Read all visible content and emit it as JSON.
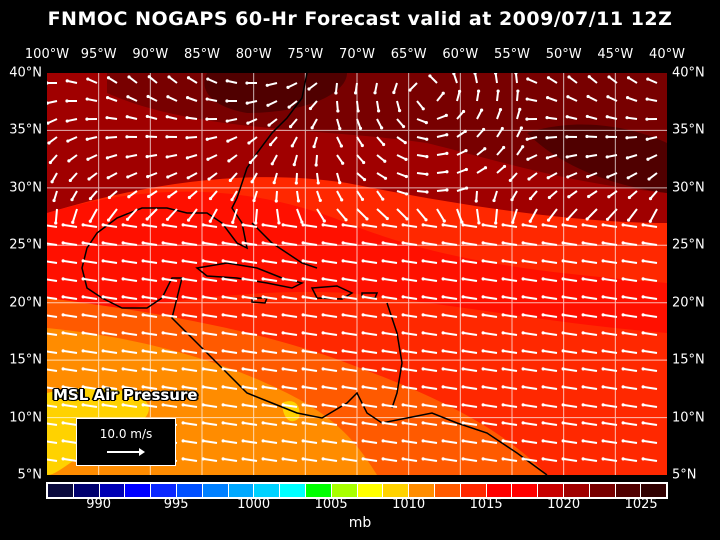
{
  "title": "FNMOC NOGAPS 60-Hr Forecast valid at 2009/07/11 12Z",
  "lon_labels": [
    "100°W",
    "95°W",
    "90°W",
    "85°W",
    "80°W",
    "75°W",
    "70°W",
    "65°W",
    "60°W",
    "55°W",
    "50°W",
    "45°W",
    "40°W"
  ],
  "lat_labels": [
    "40°N",
    "35°N",
    "30°N",
    "25°N",
    "20°N",
    "15°N",
    "10°N",
    "5°N"
  ],
  "field_label": "MSL Air Pressure",
  "reference_vector": "10.0 m/s",
  "colorbar": {
    "colors": [
      "#0a0a3c",
      "#00006e",
      "#0000b4",
      "#0000ff",
      "#0a28ff",
      "#0050ff",
      "#0080ff",
      "#00a8ff",
      "#00d2ff",
      "#00ffff",
      "#00ff00",
      "#a8ff00",
      "#ffff00",
      "#ffd200",
      "#ff8c00",
      "#ff5a00",
      "#ff2800",
      "#ff0000",
      "#ff0000",
      "#c80000",
      "#a00000",
      "#780000",
      "#500000",
      "#300000"
    ],
    "labels": [
      "990",
      "995",
      "1000",
      "1005",
      "1010",
      "1015",
      "1020",
      "1025"
    ],
    "unit": "mb"
  }
}
